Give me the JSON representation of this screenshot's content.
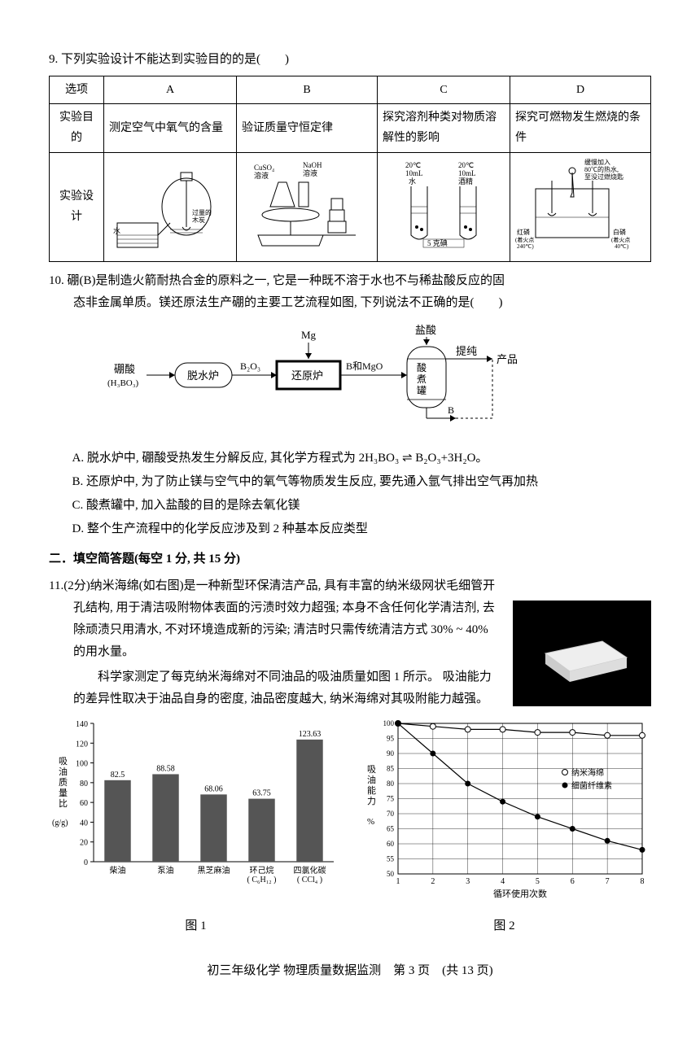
{
  "q9": {
    "stem": "9. 下列实验设计不能达到实验目的的是(　　)",
    "table": {
      "row1_label": "选项",
      "row2_label": "实验目的",
      "row3_label": "实验设计",
      "A": {
        "purpose": "测定空气中氧气的含量",
        "annot": [
          "水",
          "过量的木炭"
        ]
      },
      "B": {
        "purpose": "验证质量守恒定律",
        "annot": [
          "CuSO₄溶液",
          "NaOH溶液"
        ]
      },
      "C": {
        "purpose": "探究溶剂种类对物质溶解性的影响",
        "annot": [
          "20℃",
          "10mL",
          "水",
          "20℃",
          "10mL",
          "酒精",
          "5 克碘"
        ]
      },
      "D": {
        "purpose": "探究可燃物发生燃烧的条件",
        "annot": [
          "缓慢加入 80℃的热水, 至没过燃烧匙",
          "红磷(着火点240℃)",
          "白磷(着火点40℃)"
        ]
      }
    }
  },
  "q10": {
    "stem1": "10. 硼(B)是制造火箭耐热合金的原料之一, 它是一种既不溶于水也不与稀盐酸反应的固",
    "stem2": "态非金属单质。镁还原法生产硼的主要工艺流程如图, 下列说法不正确的是(　　)",
    "flow": {
      "in": "硼酸\n(H₃BO₃)",
      "n1": "脱水炉",
      "e1": "B₂O₃",
      "n2": "还原炉",
      "top2": "Mg",
      "e2": "B和MgO",
      "n3": "酸煮罐",
      "top3": "盐酸",
      "out": "提纯",
      "prod": "产品",
      "b_label": "B"
    },
    "opts": {
      "A": "A. 脱水炉中, 硼酸受热发生分解反应, 其化学方程式为 2H₃BO₃ ⇌ B₂O₃+3H₂O。",
      "B": "B. 还原炉中, 为了防止镁与空气中的氧气等物质发生反应, 要先通入氩气排出空气再加热",
      "C": "C. 酸煮罐中, 加入盐酸的目的是除去氧化镁",
      "D": "D. 整个生产流程中的化学反应涉及到 2 种基本反应类型"
    }
  },
  "section2": "二．填空简答题(每空 1 分, 共 15 分)",
  "q11": {
    "stem": "11.(2分)纳米海绵(如右图)是一种新型环保清洁产品, 具有丰富的纳米级网状毛细管开",
    "p1": "孔结构, 用于清洁吸附物体表面的污渍时效力超强; 本身不含任何化学清洁剂, 去除顽渍只用清水, 不对环境造成新的污染; 清洁时只需传统清洁方式 30% ~ 40% 的用水量。",
    "p2": "　　科学家测定了每克纳米海绵对不同油品的吸油质量如图 1 所示。 吸油能力的差异性取决于油品自身的密度, 油品密度越大, 纳米海绵对其吸附能力越强。",
    "fig1": {
      "ylabel": "吸油质量比\n(g/g)",
      "categories": [
        "柴油",
        "泵油",
        "黑芝麻油",
        "环己烷\n( C₆H₁₂ )",
        "四氯化碳\n( CCl₄ )"
      ],
      "values": [
        82.5,
        88.58,
        68.06,
        63.75,
        123.63
      ],
      "ylim": [
        0,
        140
      ],
      "ytick": 20,
      "bar_color": "#555555",
      "caption": "图 1"
    },
    "fig2": {
      "ylabel": "吸油能力\n%",
      "xlabel": "循环使用次数",
      "x": [
        1,
        2,
        3,
        4,
        5,
        6,
        7,
        8
      ],
      "series": [
        {
          "name": "纳米海绵",
          "marker": "open-circle",
          "color": "#000",
          "y": [
            100,
            99,
            98,
            98,
            97,
            97,
            96,
            96
          ]
        },
        {
          "name": "细菌纤维素",
          "marker": "filled-circle",
          "color": "#000",
          "y": [
            100,
            90,
            80,
            74,
            69,
            65,
            61,
            58
          ]
        }
      ],
      "ylim": [
        50,
        100
      ],
      "ytick": 5,
      "caption": "图 2"
    }
  },
  "footer": "初三年级化学 物理质量数据监测　第 3 页　(共 13 页)"
}
